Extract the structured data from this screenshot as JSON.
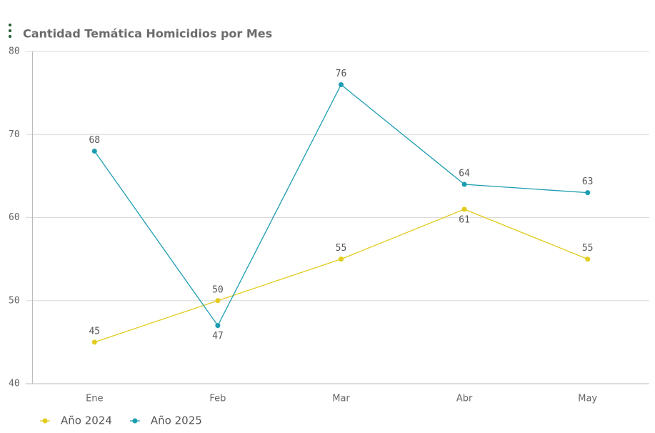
{
  "chart_data": {
    "type": "line",
    "title": "Cantidad Temática Homicidios por Mes",
    "categories": [
      "Ene",
      "Feb",
      "Mar",
      "Abr",
      "May"
    ],
    "series": [
      {
        "name": "Año 2024",
        "color": "#e2cc1c",
        "values": [
          45,
          50,
          55,
          61,
          55
        ]
      },
      {
        "name": "Año 2025",
        "color": "#1c9db0",
        "values": [
          68,
          47,
          76,
          64,
          63
        ]
      }
    ],
    "ylim": [
      40,
      80
    ],
    "yticks": [
      40,
      50,
      60,
      70,
      80
    ],
    "grid": true
  }
}
